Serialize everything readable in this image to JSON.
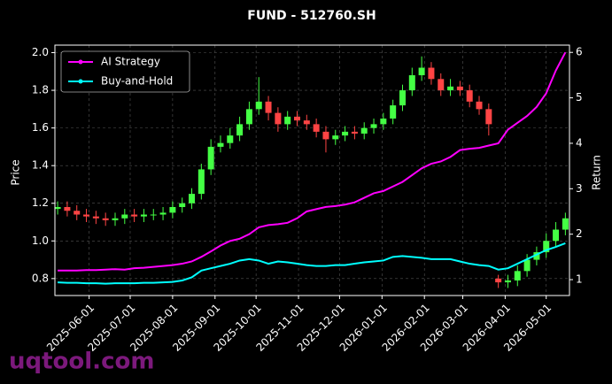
{
  "chart_data": {
    "type": "candlestick",
    "title": "FUND - 512760.SH",
    "ylabel": "Price",
    "y2label": "Return",
    "watermark": "uqtool.com",
    "x": [
      "2025-05-09",
      "2025-05-16",
      "2025-05-23",
      "2025-05-30",
      "2025-06-06",
      "2025-06-13",
      "2025-06-20",
      "2025-06-27",
      "2025-07-04",
      "2025-07-11",
      "2025-07-18",
      "2025-07-25",
      "2025-08-01",
      "2025-08-08",
      "2025-08-15",
      "2025-08-22",
      "2025-08-29",
      "2025-09-05",
      "2025-09-12",
      "2025-09-19",
      "2025-09-26",
      "2025-10-03",
      "2025-10-10",
      "2025-10-17",
      "2025-10-24",
      "2025-10-31",
      "2025-11-07",
      "2025-11-14",
      "2025-11-21",
      "2025-11-28",
      "2025-12-05",
      "2025-12-12",
      "2025-12-19",
      "2025-12-26",
      "2026-01-02",
      "2026-01-09",
      "2026-01-16",
      "2026-01-23",
      "2026-01-30",
      "2026-02-06",
      "2026-02-13",
      "2026-02-20",
      "2026-02-27",
      "2026-03-06",
      "2026-03-13",
      "2026-03-20",
      "2026-03-27",
      "2026-04-03",
      "2026-04-10",
      "2026-04-17",
      "2026-04-24",
      "2026-05-01",
      "2026-05-08",
      "2026-05-15"
    ],
    "open": [
      1.17,
      1.18,
      1.16,
      1.14,
      1.13,
      1.12,
      1.11,
      1.12,
      1.14,
      1.13,
      1.14,
      1.14,
      1.15,
      1.18,
      1.2,
      1.25,
      1.38,
      1.5,
      1.52,
      1.56,
      1.62,
      1.7,
      1.74,
      1.68,
      1.62,
      1.66,
      1.64,
      1.62,
      1.58,
      1.54,
      1.56,
      1.58,
      1.57,
      1.6,
      1.62,
      1.65,
      1.72,
      1.8,
      1.88,
      1.92,
      1.86,
      1.8,
      1.82,
      1.8,
      1.74,
      1.7,
      0.8,
      0.78,
      0.79,
      0.84,
      0.9,
      0.94,
      1.0,
      1.06
    ],
    "high": [
      1.21,
      1.21,
      1.19,
      1.17,
      1.16,
      1.15,
      1.15,
      1.17,
      1.17,
      1.17,
      1.17,
      1.18,
      1.21,
      1.23,
      1.28,
      1.41,
      1.54,
      1.56,
      1.6,
      1.66,
      1.74,
      1.87,
      1.77,
      1.71,
      1.69,
      1.69,
      1.67,
      1.65,
      1.61,
      1.59,
      1.61,
      1.61,
      1.63,
      1.65,
      1.68,
      1.75,
      1.83,
      1.92,
      1.98,
      1.95,
      1.89,
      1.86,
      1.85,
      1.83,
      1.77,
      1.73,
      0.82,
      0.82,
      0.87,
      0.93,
      0.97,
      1.04,
      1.1,
      1.15
    ],
    "low": [
      1.14,
      1.13,
      1.11,
      1.1,
      1.09,
      1.08,
      1.08,
      1.09,
      1.1,
      1.1,
      1.11,
      1.11,
      1.12,
      1.15,
      1.17,
      1.22,
      1.35,
      1.47,
      1.49,
      1.53,
      1.59,
      1.67,
      1.64,
      1.58,
      1.59,
      1.61,
      1.59,
      1.55,
      1.47,
      1.51,
      1.53,
      1.54,
      1.54,
      1.57,
      1.59,
      1.62,
      1.69,
      1.77,
      1.85,
      1.83,
      1.77,
      1.77,
      1.77,
      1.71,
      1.67,
      1.56,
      0.75,
      0.75,
      0.76,
      0.81,
      0.87,
      0.91,
      0.97,
      1.03
    ],
    "close": [
      1.18,
      1.16,
      1.14,
      1.13,
      1.12,
      1.11,
      1.12,
      1.14,
      1.13,
      1.14,
      1.14,
      1.15,
      1.18,
      1.2,
      1.25,
      1.38,
      1.5,
      1.52,
      1.56,
      1.62,
      1.7,
      1.74,
      1.68,
      1.62,
      1.66,
      1.64,
      1.62,
      1.58,
      1.54,
      1.56,
      1.58,
      1.57,
      1.6,
      1.62,
      1.65,
      1.72,
      1.8,
      1.88,
      1.92,
      1.86,
      1.8,
      1.82,
      1.8,
      1.74,
      1.7,
      1.62,
      0.78,
      0.79,
      0.84,
      0.9,
      0.94,
      1.0,
      1.06,
      1.12
    ],
    "up_color": "#44ff44",
    "down_color": "#ff4444",
    "series": [
      {
        "name": "AI Strategy",
        "color": "#ff00ff",
        "axis": "y2",
        "values": [
          1.2,
          1.2,
          1.2,
          1.21,
          1.21,
          1.22,
          1.23,
          1.22,
          1.25,
          1.26,
          1.28,
          1.3,
          1.32,
          1.35,
          1.4,
          1.5,
          1.62,
          1.75,
          1.85,
          1.9,
          2.0,
          2.15,
          2.2,
          2.22,
          2.25,
          2.35,
          2.5,
          2.55,
          2.6,
          2.62,
          2.65,
          2.7,
          2.8,
          2.9,
          2.95,
          3.05,
          3.15,
          3.3,
          3.45,
          3.55,
          3.6,
          3.7,
          3.85,
          3.88,
          3.9,
          3.95,
          4.0,
          4.3,
          4.45,
          4.6,
          4.8,
          5.1,
          5.6,
          6.0
        ]
      },
      {
        "name": "Buy-and-Hold",
        "color": "#00ffff",
        "axis": "y2",
        "values": [
          0.94,
          0.93,
          0.93,
          0.92,
          0.92,
          0.91,
          0.92,
          0.92,
          0.92,
          0.93,
          0.93,
          0.94,
          0.95,
          0.98,
          1.05,
          1.2,
          1.25,
          1.3,
          1.35,
          1.42,
          1.45,
          1.42,
          1.35,
          1.4,
          1.38,
          1.35,
          1.32,
          1.3,
          1.3,
          1.32,
          1.32,
          1.35,
          1.38,
          1.4,
          1.42,
          1.5,
          1.52,
          1.5,
          1.48,
          1.45,
          1.45,
          1.45,
          1.4,
          1.35,
          1.32,
          1.3,
          1.22,
          1.25,
          1.35,
          1.45,
          1.55,
          1.65,
          1.72,
          1.8
        ]
      }
    ],
    "xlim": [
      "2025-05-07",
      "2026-05-18"
    ],
    "xticks": [
      "2025-06-01",
      "2025-07-01",
      "2025-08-01",
      "2025-09-01",
      "2025-10-01",
      "2025-11-01",
      "2025-12-01",
      "2026-01-01",
      "2026-02-01",
      "2026-03-01",
      "2026-04-01",
      "2026-05-01"
    ],
    "ylim": [
      0.71,
      2.04
    ],
    "yticks": [
      0.8,
      {
        "value": 1.0,
        "label": "1.0"
      },
      1.2,
      1.4,
      1.6,
      1.8,
      {
        "value": 2.0,
        "label": "2.0"
      }
    ],
    "y2lim": [
      0.65,
      6.16
    ],
    "y2ticks": [
      1,
      2,
      3,
      4,
      5,
      6
    ],
    "grid": true,
    "legend": "upper-left"
  }
}
